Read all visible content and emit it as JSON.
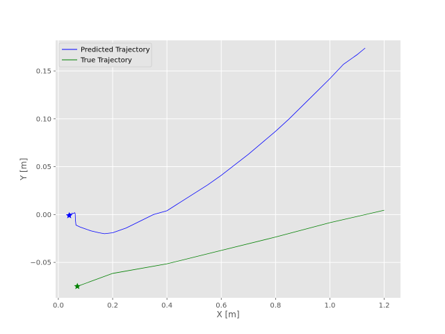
{
  "chart_data": {
    "type": "line",
    "xlabel": "X [m]",
    "ylabel": "Y [m]",
    "xlim": [
      -0.01,
      1.26
    ],
    "ylim": [
      -0.087,
      0.182
    ],
    "xticks": [
      0.0,
      0.2,
      0.4,
      0.6,
      0.8,
      1.0,
      1.2
    ],
    "xtick_labels": [
      "0.0",
      "0.2",
      "0.4",
      "0.6",
      "0.8",
      "1.0",
      "1.2"
    ],
    "yticks": [
      -0.05,
      0.0,
      0.05,
      0.1,
      0.15
    ],
    "ytick_labels": [
      "−0.05",
      "0.00",
      "0.05",
      "0.10",
      "0.15"
    ],
    "grid": true,
    "legend_position": "top-left",
    "series": [
      {
        "name": "Predicted Trajectory",
        "color": "#0000ff",
        "x": [
          0.04,
          0.043,
          0.048,
          0.05,
          0.052,
          0.055,
          0.058,
          0.06,
          0.062,
          0.063,
          0.065,
          0.08,
          0.1,
          0.12,
          0.15,
          0.17,
          0.2,
          0.25,
          0.3,
          0.35,
          0.4,
          0.45,
          0.5,
          0.55,
          0.6,
          0.65,
          0.7,
          0.75,
          0.8,
          0.85,
          0.9,
          0.95,
          1.0,
          1.05,
          1.1,
          1.13
        ],
        "y": [
          -0.001,
          0.001,
          0.0,
          0.0015,
          0.001,
          0.001,
          0.0015,
          0.002,
          0.001,
          -0.006,
          -0.011,
          -0.013,
          -0.015,
          -0.017,
          -0.019,
          -0.02,
          -0.019,
          -0.014,
          -0.007,
          0.0,
          0.004,
          0.013,
          0.022,
          0.031,
          0.041,
          0.052,
          0.063,
          0.075,
          0.087,
          0.1,
          0.114,
          0.128,
          0.142,
          0.157,
          0.167,
          0.174
        ],
        "start_marker": "star"
      },
      {
        "name": "True Trajectory",
        "color": "#008000",
        "x": [
          0.07,
          0.2,
          0.4,
          0.6,
          0.8,
          1.0,
          1.2
        ],
        "y": [
          -0.075,
          -0.0615,
          -0.0515,
          -0.0375,
          -0.0235,
          -0.0085,
          0.0045
        ],
        "start_marker": "star"
      }
    ]
  }
}
